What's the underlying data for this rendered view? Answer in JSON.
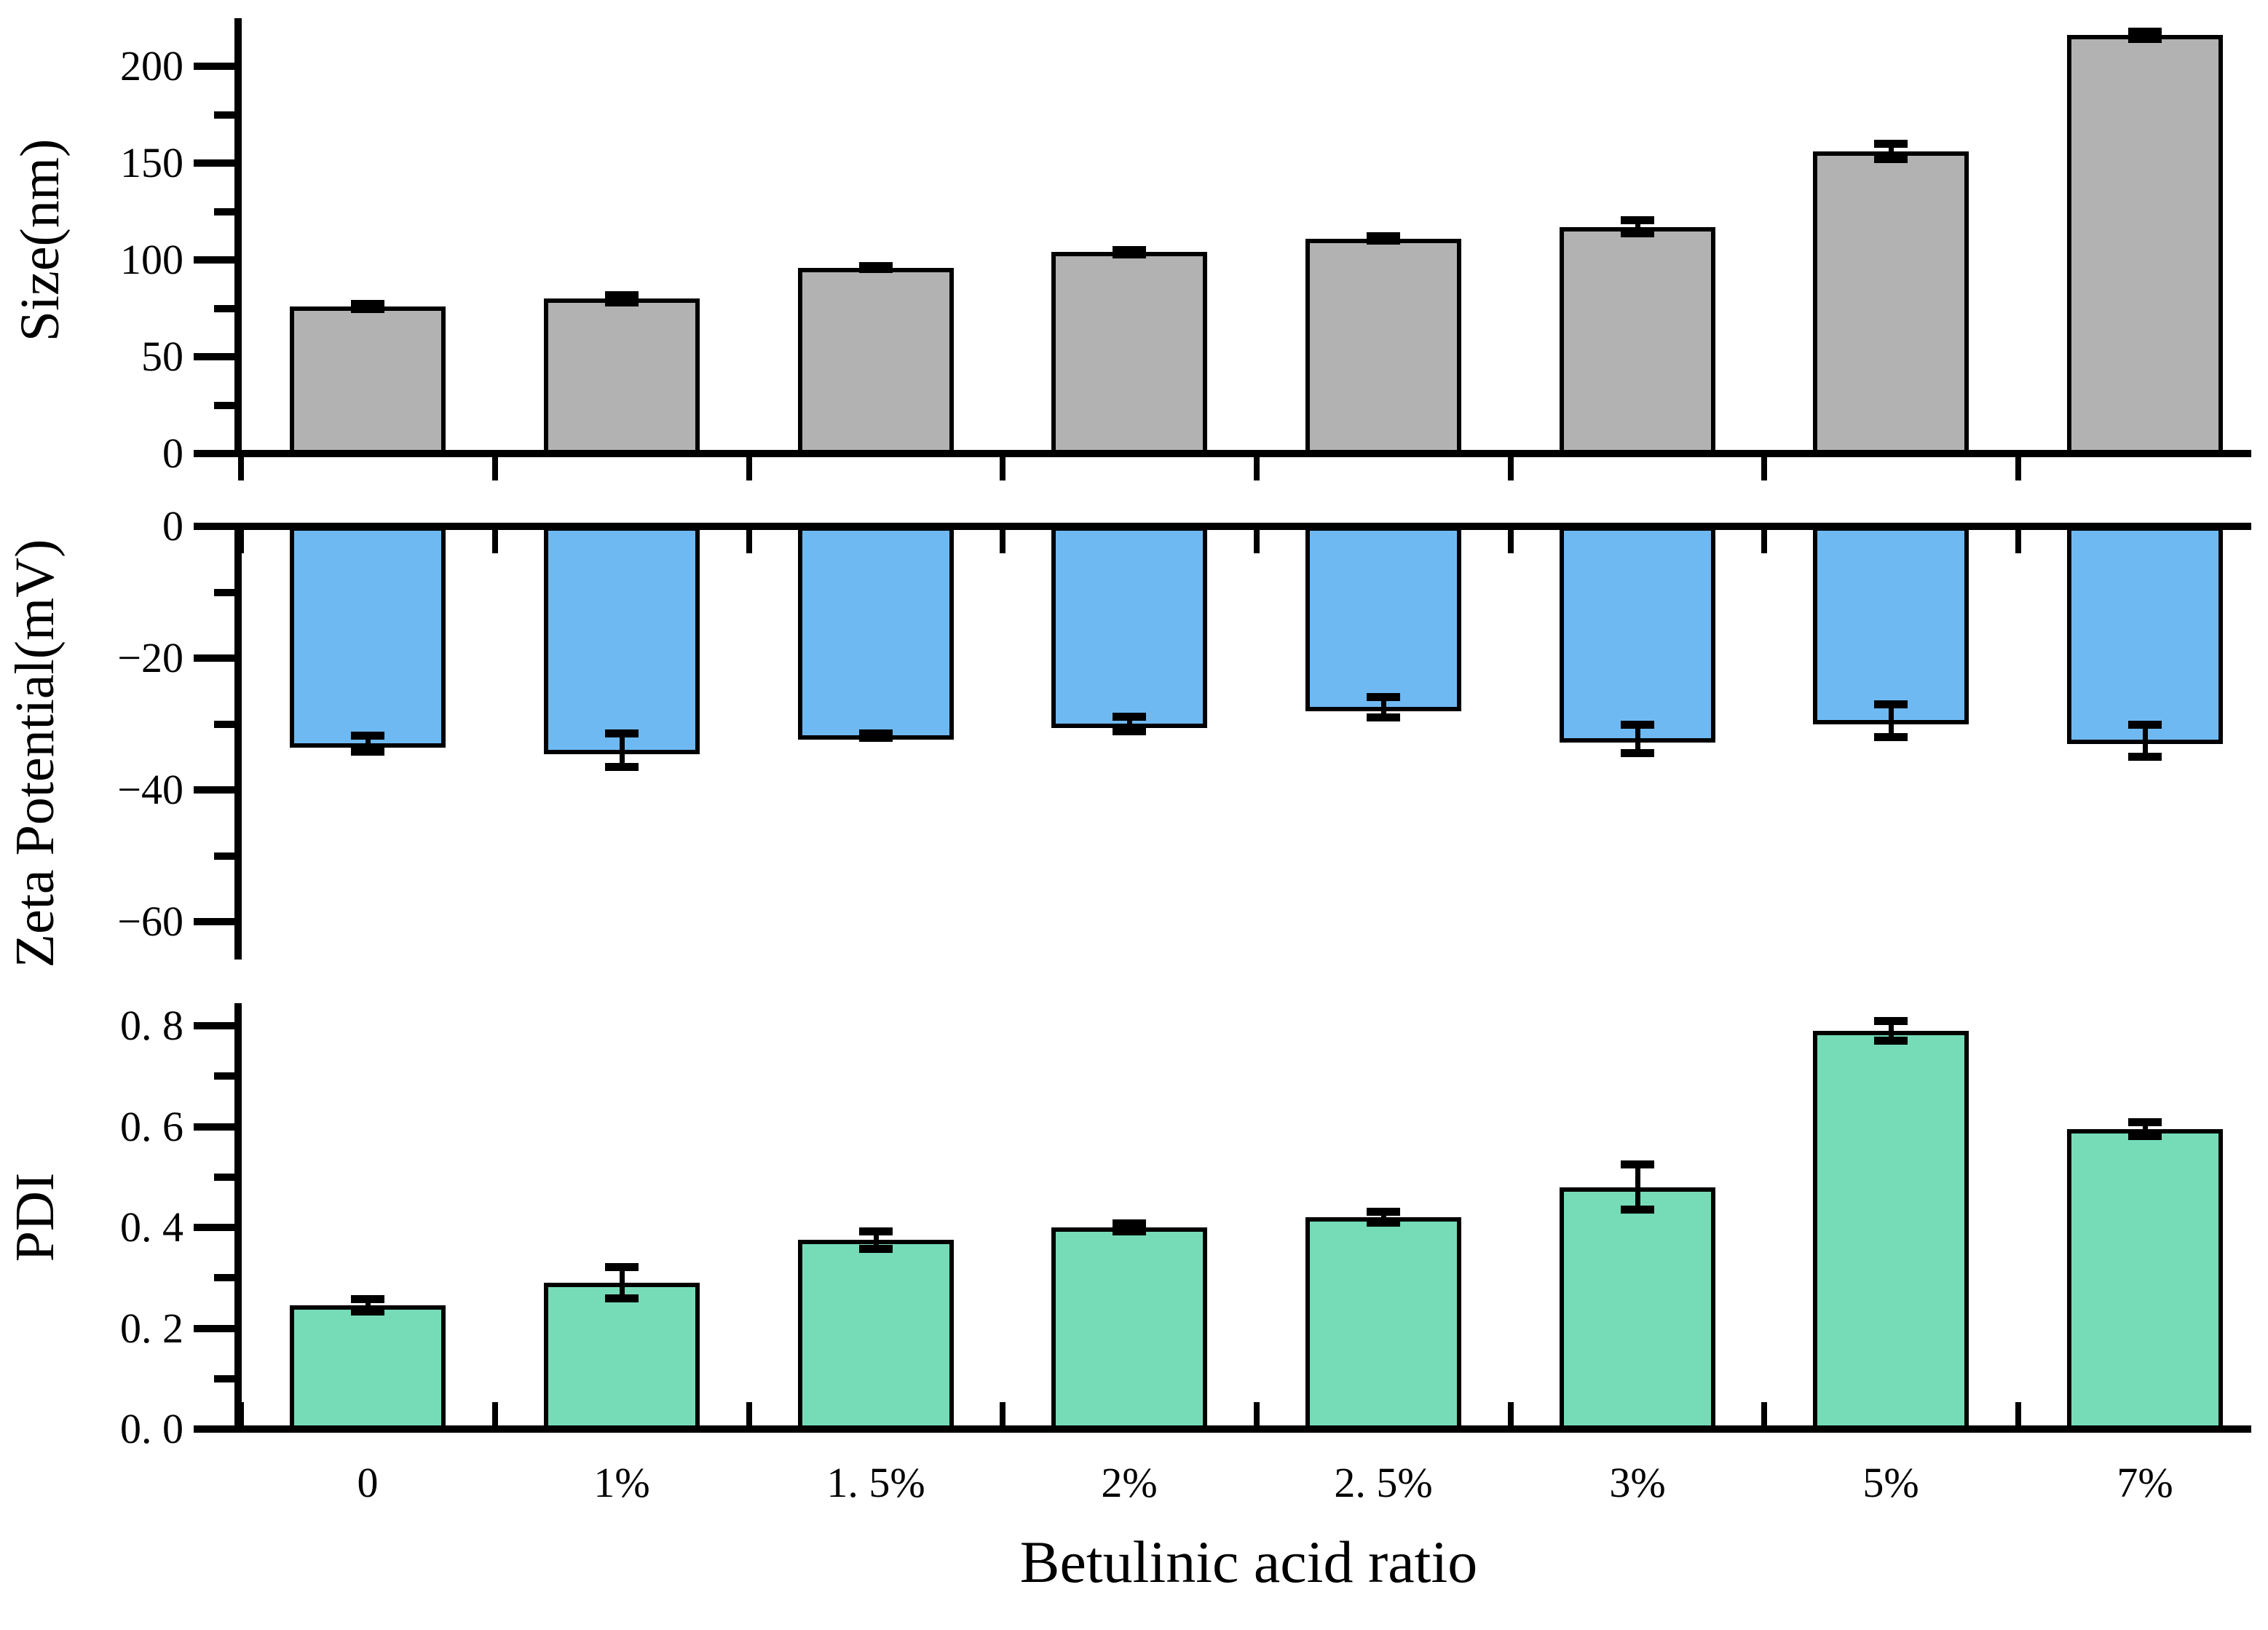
{
  "xlabel": "Betulinic acid ratio",
  "categories": [
    "0",
    "1%",
    "1. 5%",
    "2%",
    "2. 5%",
    "3%",
    "5%",
    "7%"
  ],
  "colors": {
    "size_bar": "#b2b2b2",
    "zeta_bar": "#6fb9f2",
    "pdi_bar": "#76dcb8",
    "axis": "#000000",
    "background": "#ffffff"
  },
  "chart_data": [
    {
      "type": "bar",
      "panel": "size",
      "ylabel": "Size(nm)",
      "categories": [
        "0",
        "1%",
        "1. 5%",
        "2%",
        "2. 5%",
        "3%",
        "5%",
        "7%"
      ],
      "values": [
        76,
        80,
        96,
        104,
        111,
        117,
        156,
        216
      ],
      "errors": [
        1.5,
        2,
        1,
        1.2,
        1.3,
        3.5,
        4,
        2
      ],
      "ylim": [
        0,
        225
      ],
      "yticks": [
        0,
        50,
        100,
        150,
        200
      ],
      "ytick_labels": [
        "0",
        "50",
        "100",
        "150",
        "200"
      ],
      "minor_yticks": [
        25,
        75,
        125,
        175
      ],
      "bar_color": "#b2b2b2",
      "grid": false,
      "legend": "none",
      "direction": "up"
    },
    {
      "type": "bar",
      "panel": "zeta",
      "ylabel": "Zeta Potential(mV)",
      "categories": [
        "0",
        "1%",
        "1. 5%",
        "2%",
        "2. 5%",
        "3%",
        "5%",
        "7%"
      ],
      "values": [
        -33,
        -34,
        -31.8,
        -30,
        -27.5,
        -32.3,
        -29.5,
        -32.5
      ],
      "errors": [
        1.3,
        2.6,
        0.4,
        1.2,
        1.6,
        2.2,
        2.5,
        2.5
      ],
      "ylim": [
        -66,
        0
      ],
      "yticks": [
        0,
        -20,
        -40,
        -60
      ],
      "ytick_labels": [
        "0",
        "−20",
        "−40",
        "−60"
      ],
      "minor_yticks": [
        -10,
        -30,
        -50
      ],
      "bar_color": "#6fb9f2",
      "grid": false,
      "legend": "none",
      "direction": "down"
    },
    {
      "type": "bar",
      "panel": "pdi",
      "ylabel": "PDI",
      "categories": [
        "0",
        "1%",
        "1. 5%",
        "2%",
        "2. 5%",
        "3%",
        "5%",
        "7%"
      ],
      "values": [
        0.245,
        0.29,
        0.375,
        0.4,
        0.42,
        0.48,
        0.79,
        0.595
      ],
      "errors": [
        0.013,
        0.032,
        0.018,
        0.008,
        0.012,
        0.045,
        0.02,
        0.015
      ],
      "ylim": [
        0,
        0.845
      ],
      "yticks": [
        0.0,
        0.2,
        0.4,
        0.6,
        0.8
      ],
      "ytick_labels": [
        "0. 0",
        "0. 2",
        "0. 4",
        "0. 6",
        "0. 8"
      ],
      "minor_yticks": [
        0.1,
        0.3,
        0.5,
        0.7
      ],
      "bar_color": "#76dcb8",
      "grid": false,
      "legend": "none",
      "direction": "up"
    }
  ]
}
